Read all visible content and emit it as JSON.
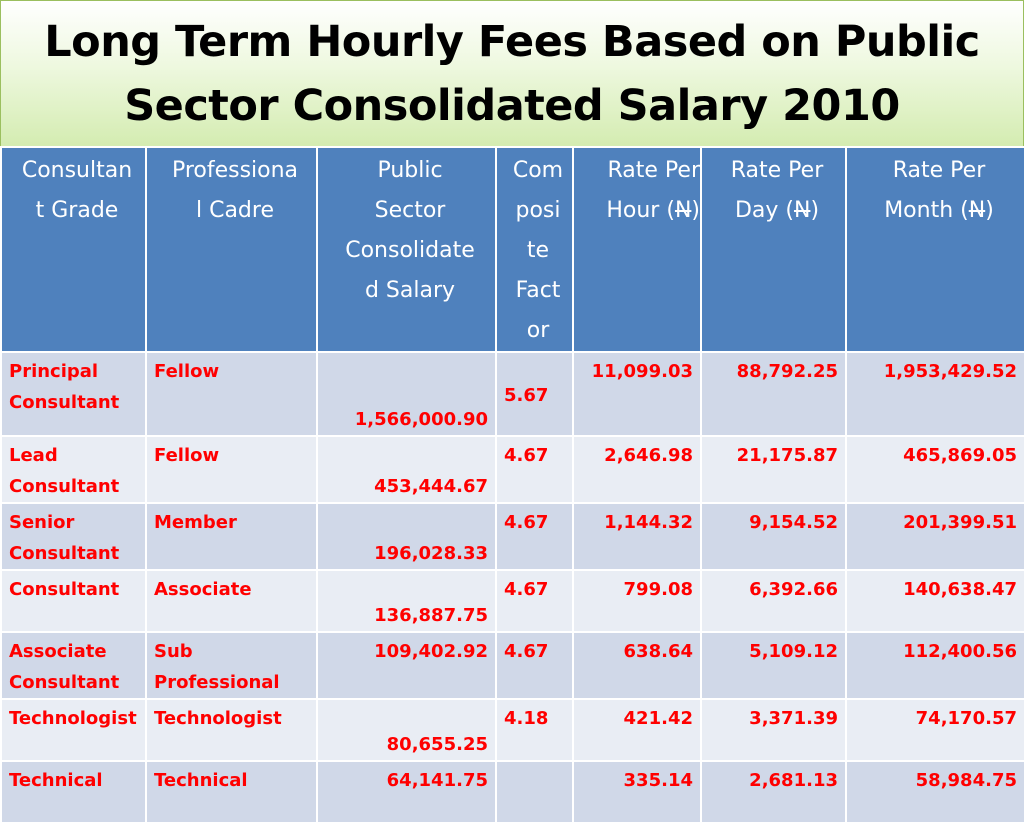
{
  "title": {
    "line1": "Long Term Hourly Fees Based on Public",
    "line2": "Sector Consolidated Salary 2010"
  },
  "headers": {
    "grade": [
      "Consultan",
      "t Grade"
    ],
    "cadre": [
      "Professiona",
      "l Cadre"
    ],
    "salary": [
      "Public",
      "Sector",
      "Consolidate",
      "d Salary"
    ],
    "factor": [
      "Com",
      "posi",
      "te",
      "Fact",
      "or"
    ],
    "hour": [
      "Rate Per",
      "Hour (",
      "N",
      ")"
    ],
    "day": [
      "Rate Per",
      "Day (",
      "N",
      ")"
    ],
    "month": [
      "Rate Per",
      "Month (",
      "N",
      ")"
    ]
  },
  "rows": [
    {
      "grade": [
        "Principal",
        "Consultant"
      ],
      "cadre": [
        "Fellow",
        ""
      ],
      "salary": "1,566,000.90",
      "factor": "5.67",
      "hour": "11,099.03",
      "day": "88,792.25",
      "month": "1,953,429.52"
    },
    {
      "grade": [
        "Lead",
        "Consultant"
      ],
      "cadre": [
        "Fellow",
        ""
      ],
      "salary": "453,444.67",
      "factor": "4.67",
      "hour": "2,646.98",
      "day": "21,175.87",
      "month": "465,869.05"
    },
    {
      "grade": [
        "Senior",
        "Consultant"
      ],
      "cadre": [
        "Member",
        ""
      ],
      "salary": "196,028.33",
      "factor": "4.67",
      "hour": "1,144.32",
      "day": "9,154.52",
      "month": "201,399.51"
    },
    {
      "grade": [
        "Consultant",
        ""
      ],
      "cadre": [
        "Associate",
        ""
      ],
      "salary": "136,887.75",
      "factor": "4.67",
      "hour": "799.08",
      "day": "6,392.66",
      "month": "140,638.47"
    },
    {
      "grade": [
        "Associate",
        "Consultant"
      ],
      "cadre": [
        "Sub",
        "Professional"
      ],
      "salary": "109,402.92",
      "factor": "4.67",
      "hour": "638.64",
      "day": "5,109.12",
      "month": "112,400.56"
    },
    {
      "grade": [
        "Technologist",
        ""
      ],
      "cadre": [
        "Technologist",
        ""
      ],
      "salary": "80,655.25",
      "factor": "4.18",
      "hour": "421.42",
      "day": "3,371.39",
      "month": "74,170.57"
    },
    {
      "grade": [
        "Technical",
        ""
      ],
      "cadre": [
        "Technical",
        ""
      ],
      "salary": "64,141.75",
      "factor": "",
      "hour": "335.14",
      "day": "2,681.13",
      "month": "58,984.75"
    }
  ]
}
